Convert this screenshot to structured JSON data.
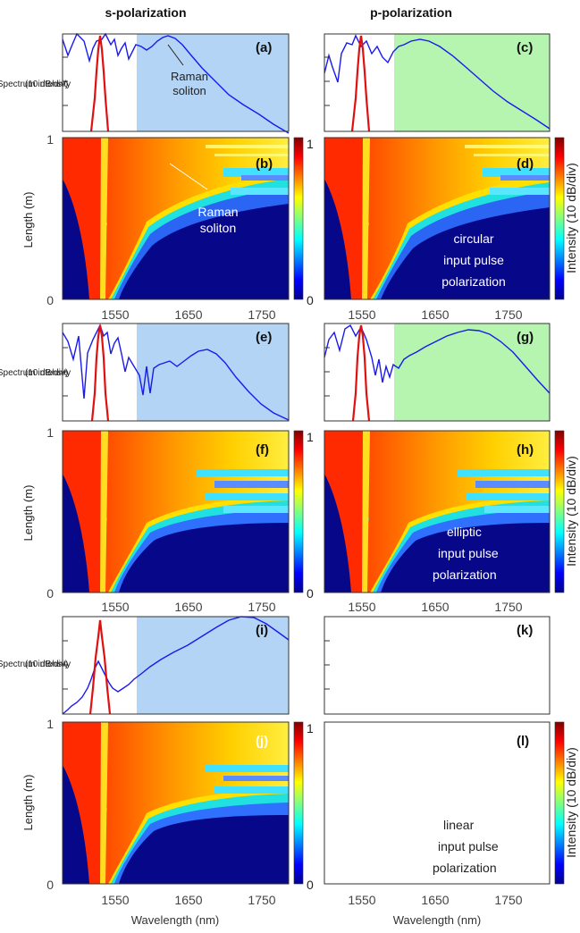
{
  "column_titles": [
    "s-polarization",
    "p-polarization"
  ],
  "spectrum_ylabel": [
    "Spectrum intensity",
    "(10 dB/div)"
  ],
  "length_ylabel": "Length (m)",
  "xlabel": "Wavelength (nm)",
  "colorbar_title": "Intensity (10 dB/div)",
  "colorbar_ticks": [
    "1",
    "0"
  ],
  "colors": {
    "spectrum_line": "#1a1aee",
    "pulse_line": "#e01010",
    "s_shade": "#b3d4f5",
    "p_shade": "#b5f5b0",
    "map_background": "#07078a"
  },
  "chart_data": [
    {
      "panel": "a",
      "type": "line",
      "tag": "(a)",
      "series": [
        "spectrum",
        "input pulse"
      ],
      "shaded_from_nm": 1595,
      "annotation": [
        "Raman",
        "soliton"
      ]
    },
    {
      "panel": "b",
      "type": "heatmap",
      "tag": "(b)",
      "ylim": [
        0,
        1
      ],
      "yticks": [
        "1",
        "0"
      ],
      "annotation": [
        "Raman",
        "soliton"
      ]
    },
    {
      "panel": "c",
      "type": "line",
      "tag": "(c)",
      "series": [
        "spectrum",
        "input pulse"
      ],
      "shaded_from_nm": 1593
    },
    {
      "panel": "d",
      "type": "heatmap",
      "tag": "(d)",
      "ylim": [
        0,
        1
      ],
      "annotation": [
        "circular",
        "input pulse",
        "polarization"
      ]
    },
    {
      "panel": "e",
      "type": "line",
      "tag": "(e)",
      "series": [
        "spectrum",
        "input pulse"
      ],
      "shaded_from_nm": 1595
    },
    {
      "panel": "f",
      "type": "heatmap",
      "tag": "(f)",
      "ylim": [
        0,
        1
      ],
      "yticks": [
        "1",
        "0"
      ]
    },
    {
      "panel": "g",
      "type": "line",
      "tag": "(g)",
      "series": [
        "spectrum",
        "input pulse"
      ],
      "shaded_from_nm": 1593
    },
    {
      "panel": "h",
      "type": "heatmap",
      "tag": "(h)",
      "ylim": [
        0,
        1
      ],
      "annotation": [
        "elliptic",
        "input pulse",
        "polarization"
      ]
    },
    {
      "panel": "i",
      "type": "line",
      "tag": "(i)",
      "series": [
        "spectrum",
        "input pulse"
      ],
      "shaded_from_nm": 1595
    },
    {
      "panel": "j",
      "type": "heatmap",
      "tag": "(j)",
      "ylim": [
        0,
        1
      ],
      "yticks": [
        "1",
        "0"
      ]
    },
    {
      "panel": "k",
      "type": "line",
      "tag": "(k)",
      "series": []
    },
    {
      "panel": "l",
      "type": "heatmap",
      "tag": "(l)",
      "ylim": [
        0,
        1
      ],
      "annotation": [
        "linear",
        "input pulse",
        "polarization"
      ]
    }
  ],
  "x_axis": {
    "xlim": [
      1495,
      1805
    ],
    "ticks": [
      1550,
      1650,
      1750
    ],
    "tick_labels": [
      "1550",
      "1650",
      "1750"
    ]
  }
}
